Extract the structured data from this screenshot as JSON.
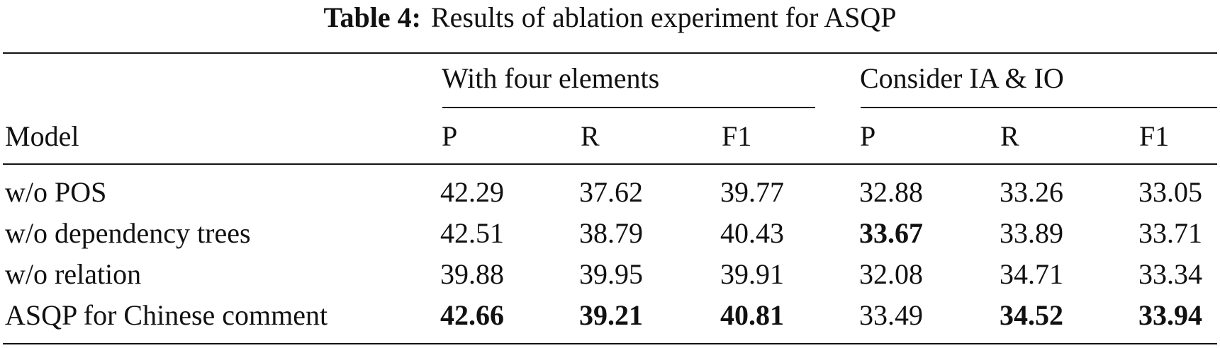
{
  "caption": {
    "label": "Table 4:",
    "text": "Results of ablation experiment for ASQP"
  },
  "table": {
    "group_headers": [
      "With four elements",
      "Consider IA & IO"
    ],
    "model_header": "Model",
    "sub_headers": [
      "P",
      "R",
      "F1",
      "P",
      "R",
      "F1"
    ],
    "rows": [
      {
        "model": "w/o POS",
        "values": [
          "42.29",
          "37.62",
          "39.77",
          "32.88",
          "33.26",
          "33.05"
        ],
        "bold": [
          false,
          false,
          false,
          false,
          false,
          false
        ]
      },
      {
        "model": "w/o dependency trees",
        "values": [
          "42.51",
          "38.79",
          "40.43",
          "33.67",
          "33.89",
          "33.71"
        ],
        "bold": [
          false,
          false,
          false,
          true,
          false,
          false
        ]
      },
      {
        "model": "w/o relation",
        "values": [
          "39.88",
          "39.95",
          "39.91",
          "32.08",
          "34.71",
          "33.34"
        ],
        "bold": [
          false,
          false,
          false,
          false,
          false,
          false
        ]
      },
      {
        "model": "ASQP for Chinese comment",
        "values": [
          "42.66",
          "39.21",
          "40.81",
          "33.49",
          "34.52",
          "33.94"
        ],
        "bold": [
          true,
          true,
          true,
          false,
          true,
          true
        ]
      }
    ]
  }
}
